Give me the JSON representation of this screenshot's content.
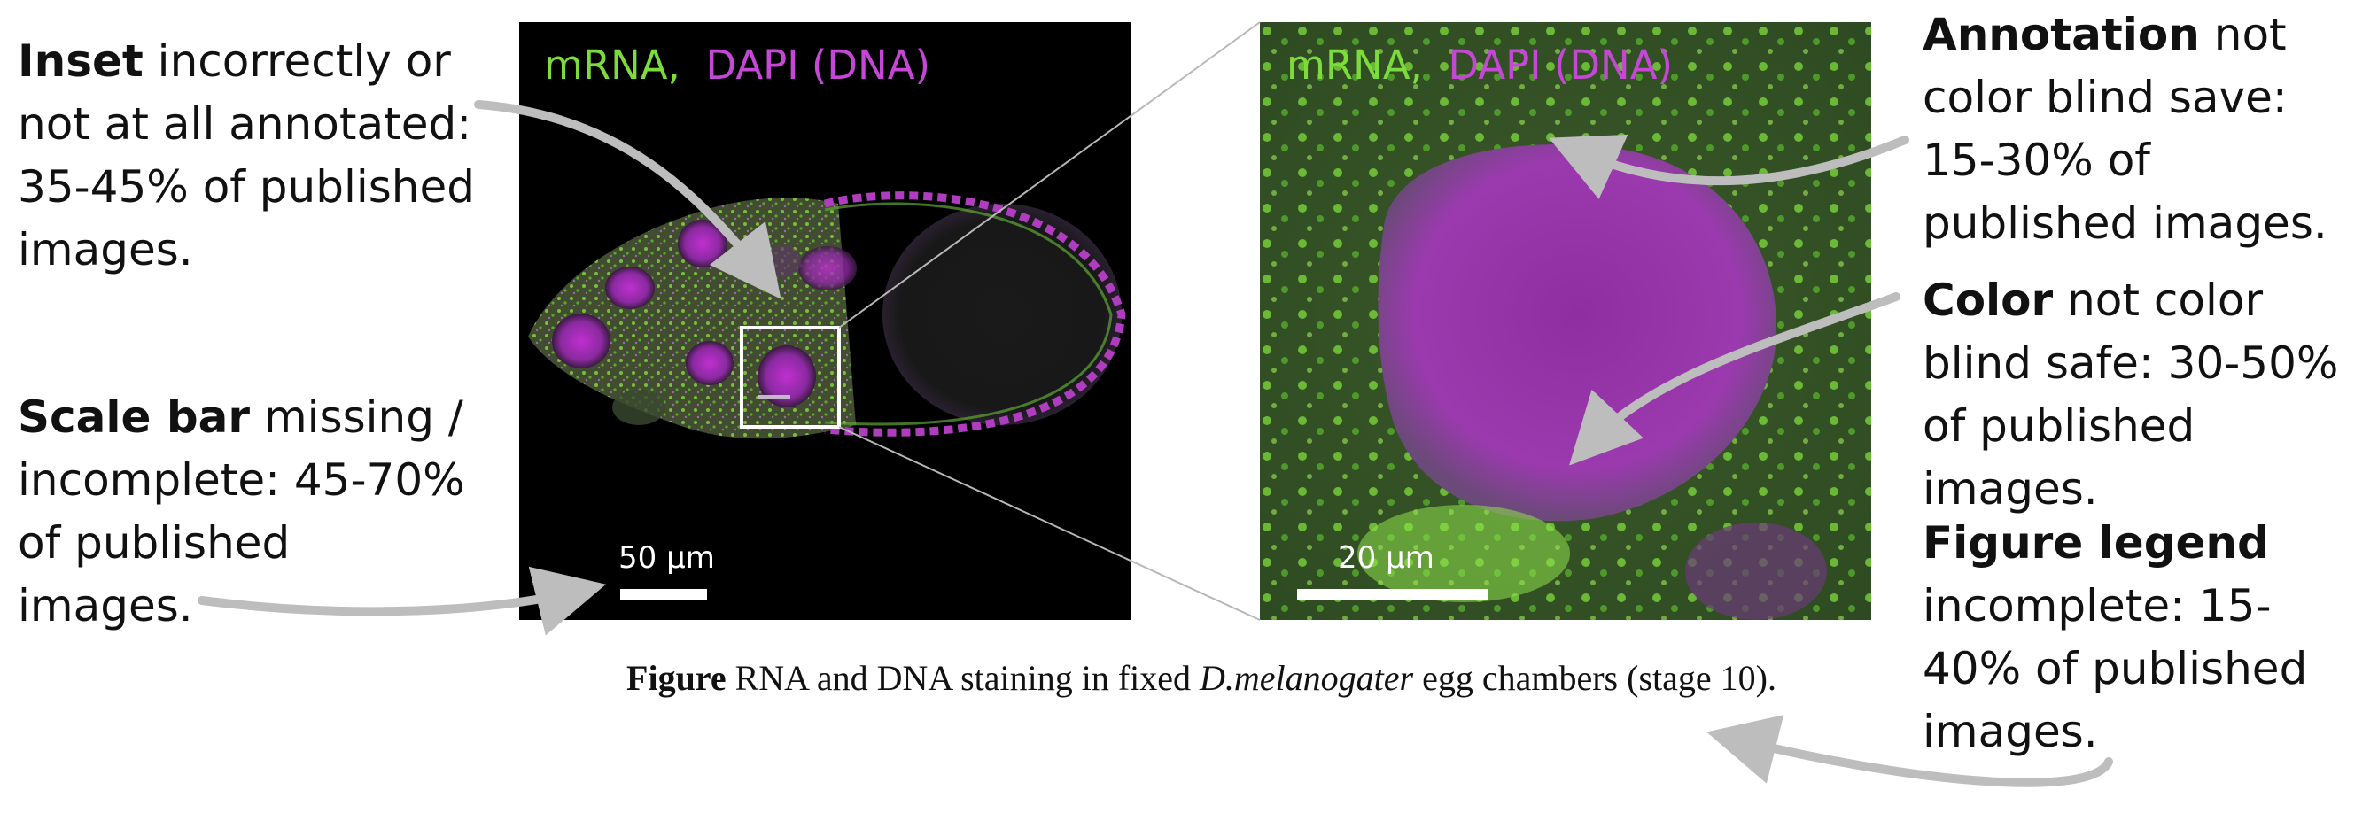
{
  "annotations": {
    "inset": {
      "bold": "Inset",
      "rest": " incorrectly or not at all annotated: 35-45% of published images."
    },
    "scale_bar": {
      "bold": "Scale bar",
      "rest": " missing / incomplete: 45-70% of published images."
    },
    "annotation": {
      "bold": "Annotation",
      "rest": " not color blind save: 15-30% of published images."
    },
    "color": {
      "bold": "Color",
      "rest": " not color blind safe: 30-50% of published images."
    },
    "legend": {
      "bold": "Figure legend",
      "rest": " incomplete: 15-40% of published images."
    }
  },
  "panel_main": {
    "label_mrna": "mRNA,",
    "label_dapi": "DAPI (DNA)",
    "scale_text": "50 µm"
  },
  "panel_zoom": {
    "label_mrna": "mRNA,",
    "label_sep": ",",
    "label_dapi": "DAPI (DNA)",
    "scale_text": "20 µm"
  },
  "caption": {
    "bold": "Figure",
    "text1": " RNA and DNA staining in fixed ",
    "italic": "D.melanogater",
    "text2": " egg chambers (stage 10)."
  },
  "colors": {
    "mrna_green": "#7ddc3c",
    "dapi_magenta": "#c447d6",
    "arrow_gray": "#bdbdbd"
  }
}
